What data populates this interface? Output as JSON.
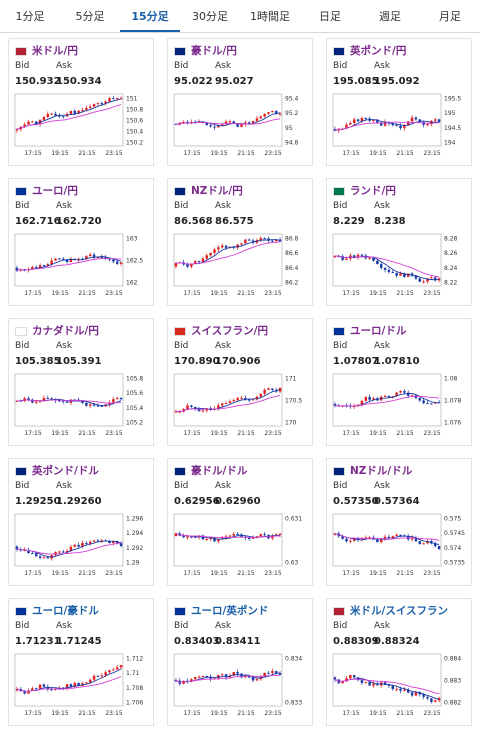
{
  "tabs": [
    "1分足",
    "5分足",
    "15分足",
    "30分足",
    "1時間足",
    "日足",
    "週足",
    "月足"
  ],
  "active_tab": 2,
  "labels": {
    "bid": "Bid",
    "ask": "Ask"
  },
  "x_ticks": [
    "17:15",
    "19:15",
    "21:15",
    "23:15"
  ],
  "cards": [
    {
      "pair": "米ドル/円",
      "color": "purple",
      "bid": "150.932",
      "ask": "150.934",
      "yticks": [
        "151",
        "150.8",
        "150.6",
        "150.4",
        "150.2"
      ],
      "seed": 1,
      "trend": 0.8,
      "flag": "us-jp"
    },
    {
      "pair": "豪ドル/円",
      "color": "purple",
      "bid": "95.022",
      "ask": "95.027",
      "yticks": [
        "95.4",
        "95.2",
        "95",
        "94.8"
      ],
      "seed": 2,
      "trend": 0.3,
      "flag": "au-jp"
    },
    {
      "pair": "英ポンド/円",
      "color": "purple",
      "bid": "195.085",
      "ask": "195.092",
      "yticks": [
        "195.5",
        "195",
        "194.5",
        "194"
      ],
      "seed": 3,
      "trend": 0.7,
      "flag": "gb-jp"
    },
    {
      "pair": "ユーロ/円",
      "color": "purple",
      "bid": "162.716",
      "ask": "162.720",
      "yticks": [
        "163",
        "162.5",
        "162"
      ],
      "seed": 4,
      "trend": 0.6,
      "flag": "eu-jp"
    },
    {
      "pair": "NZドル/円",
      "color": "purple",
      "bid": "86.568",
      "ask": "86.575",
      "yticks": [
        "86.8",
        "86.6",
        "86.4",
        "86.2"
      ],
      "seed": 5,
      "trend": 0.5,
      "flag": "nz-jp"
    },
    {
      "pair": "ランド/円",
      "color": "purple",
      "bid": "8.229",
      "ask": "8.238",
      "yticks": [
        "8.28",
        "8.26",
        "8.24",
        "8.22"
      ],
      "seed": 6,
      "trend": -0.2,
      "flag": "za-jp"
    },
    {
      "pair": "カナダドル/円",
      "color": "purple",
      "bid": "105.385",
      "ask": "105.391",
      "yticks": [
        "105.8",
        "105.6",
        "105.4",
        "105.2"
      ],
      "seed": 7,
      "trend": 0.1,
      "flag": "ca-jp"
    },
    {
      "pair": "スイスフラン/円",
      "color": "purple",
      "bid": "170.890",
      "ask": "170.906",
      "yticks": [
        "171",
        "170.5",
        "170"
      ],
      "seed": 8,
      "trend": 0.9,
      "flag": "ch-jp"
    },
    {
      "pair": "ユーロ/ドル",
      "color": "purple",
      "bid": "1.07807",
      "ask": "1.07810",
      "yticks": [
        "1.08",
        "1.078",
        "1.076"
      ],
      "seed": 9,
      "trend": 0.3,
      "flag": "eu-us"
    },
    {
      "pair": "英ポンド/ドル",
      "color": "purple",
      "bid": "1.29250",
      "ask": "1.29260",
      "yticks": [
        "1.296",
        "1.294",
        "1.292",
        "1.29"
      ],
      "seed": 10,
      "trend": 0.5,
      "flag": "gb-us"
    },
    {
      "pair": "豪ドル/ドル",
      "color": "purple",
      "bid": "0.62956",
      "ask": "0.62960",
      "yticks": [
        "0.631",
        "0.63"
      ],
      "seed": 11,
      "trend": -0.3,
      "flag": "au-us"
    },
    {
      "pair": "NZドル/ドル",
      "color": "purple",
      "bid": "0.57350",
      "ask": "0.57364",
      "yticks": [
        "0.575",
        "0.5745",
        "0.574",
        "0.5735"
      ],
      "seed": 12,
      "trend": -0.4,
      "flag": "nz-us"
    },
    {
      "pair": "ユーロ/豪ドル",
      "color": "blue",
      "bid": "1.71231",
      "ask": "1.71245",
      "yticks": [
        "1.712",
        "1.71",
        "1.708",
        "1.706"
      ],
      "seed": 13,
      "trend": 0.8,
      "flag": "eu-au"
    },
    {
      "pair": "ユーロ/英ポンド",
      "color": "blue",
      "bid": "0.83403",
      "ask": "0.83411",
      "yticks": [
        "0.834",
        "0.833"
      ],
      "seed": 14,
      "trend": 0.0,
      "flag": "eu-gb"
    },
    {
      "pair": "米ドル/スイスフラン",
      "color": "blue",
      "bid": "0.88309",
      "ask": "0.88324",
      "yticks": [
        "0.884",
        "0.883",
        "0.882"
      ],
      "seed": 15,
      "trend": -0.2,
      "flag": "us-ch"
    }
  ]
}
